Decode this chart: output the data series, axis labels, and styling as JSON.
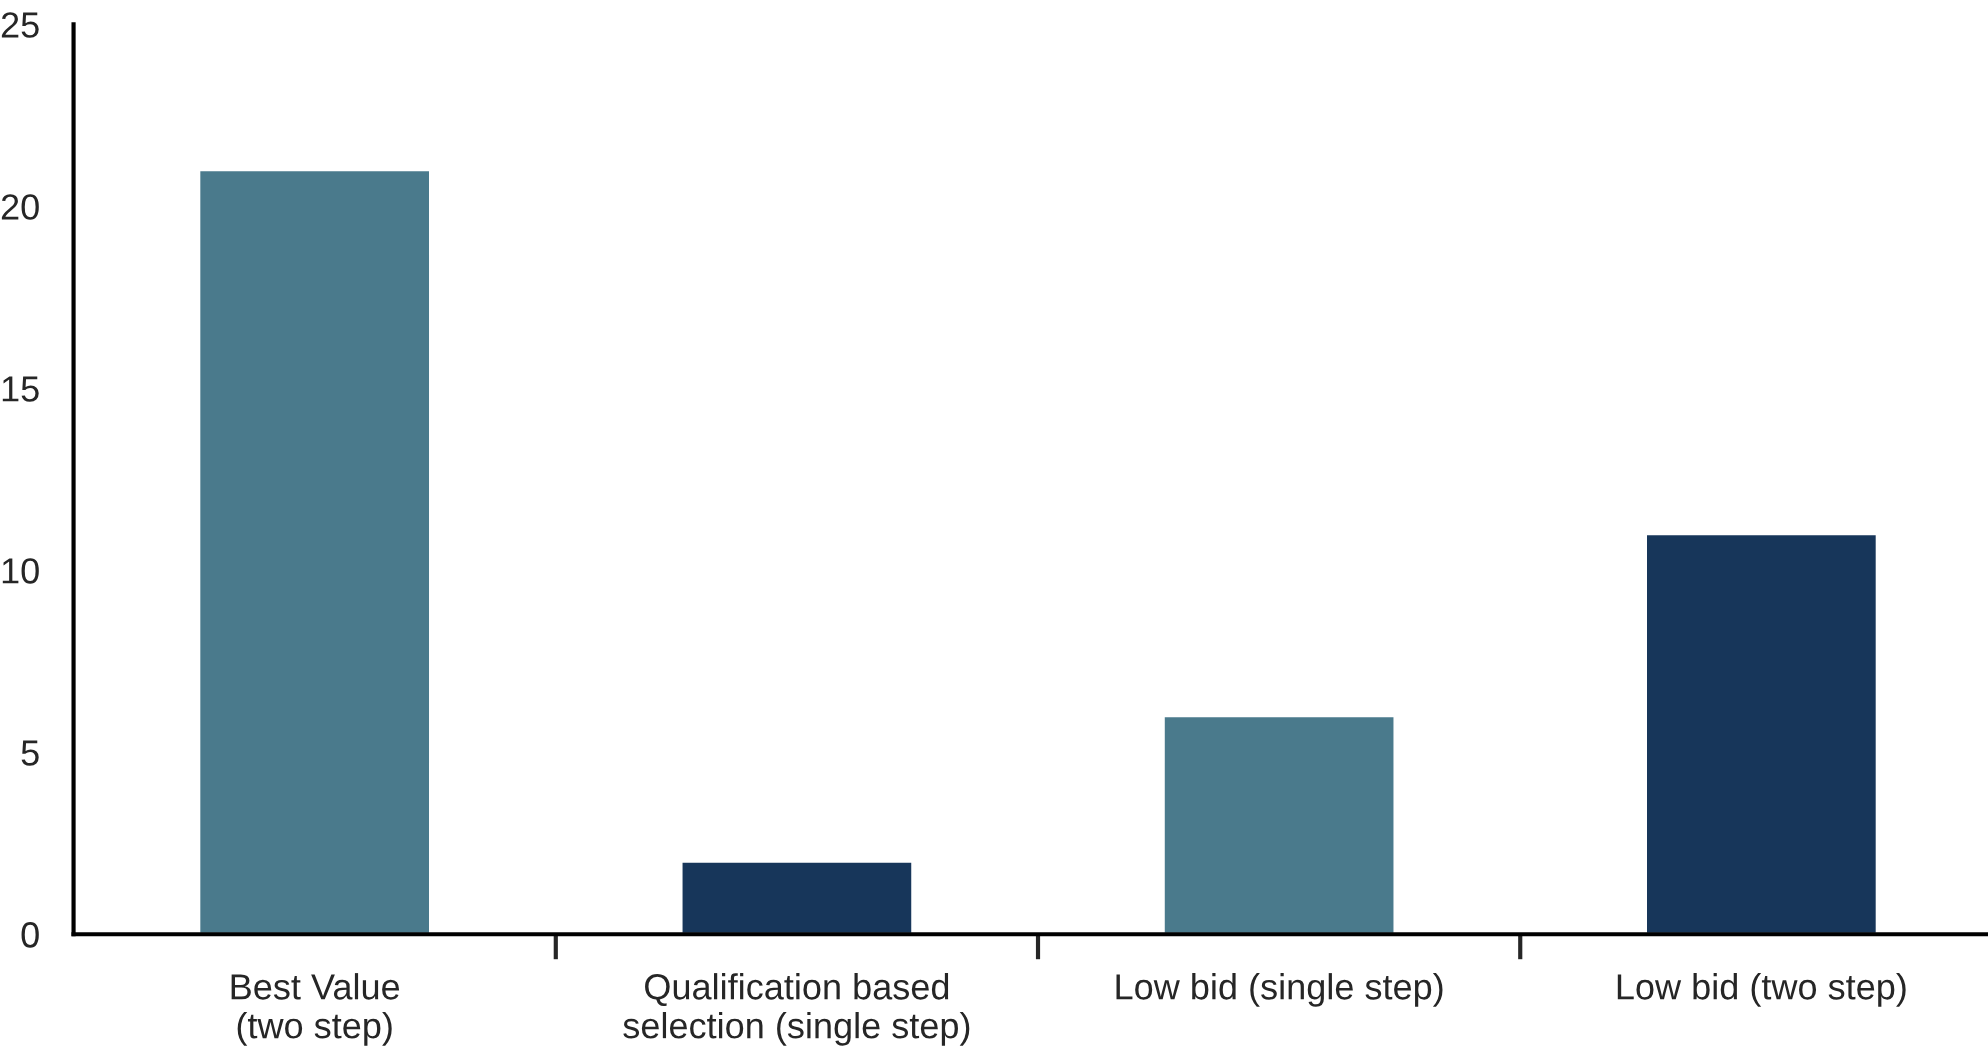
{
  "chart_data": {
    "type": "bar",
    "categories": [
      "Best Value\n(two step)",
      "Qualification based\nselection (single step)",
      "Low bid (single step)",
      "Low bid (two step)"
    ],
    "values": [
      21,
      2,
      6,
      11
    ],
    "colors": [
      "#4a7a8c",
      "#17365a",
      "#4a7a8c",
      "#17365a"
    ],
    "ylim": [
      0,
      25
    ],
    "yticks": [
      0,
      5,
      10,
      15,
      20,
      25
    ],
    "grid": false,
    "legend": false
  }
}
